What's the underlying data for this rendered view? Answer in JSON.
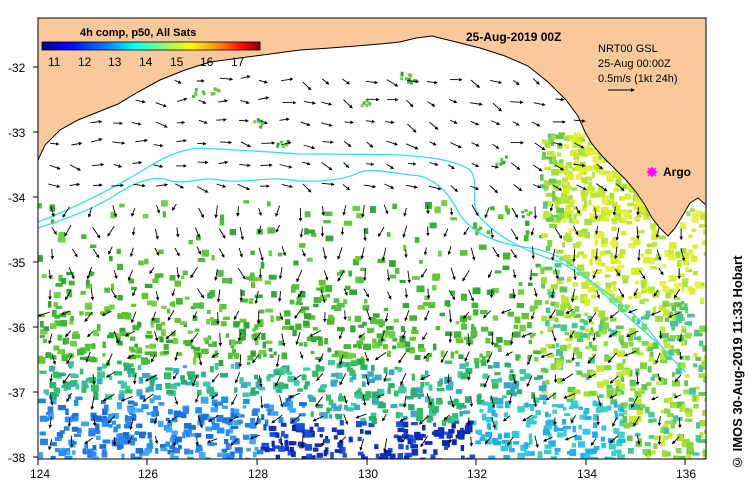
{
  "map": {
    "title": "25-Aug-2019 00Z",
    "legend_title": "4h comp, p50, All Sats",
    "colorbar_ticks": [
      "11",
      "12",
      "13",
      "14",
      "15",
      "16",
      "17"
    ],
    "colorbar_colors": [
      "#00008f",
      "#0000ff",
      "#0080ff",
      "#00ffff",
      "#80ff80",
      "#ffff00",
      "#ff8000",
      "#ff0000",
      "#800000"
    ],
    "info_lines": [
      "NRT00 GSL",
      "25-Aug 00:00Z",
      "0.5m/s (1kt 24h)"
    ],
    "marker_label": "Argo",
    "marker_color": "#ff00ff",
    "land_color": "#f9c99b",
    "current_color": "#33e0e8",
    "credit": "© IMOS 30-Aug-2019 11:33 Hobart",
    "x_ticks": [
      "124",
      "126",
      "128",
      "130",
      "132",
      "134",
      "136"
    ],
    "y_ticks": [
      "-32",
      "-33",
      "-34",
      "-35",
      "-36",
      "-37",
      "-38"
    ]
  }
}
